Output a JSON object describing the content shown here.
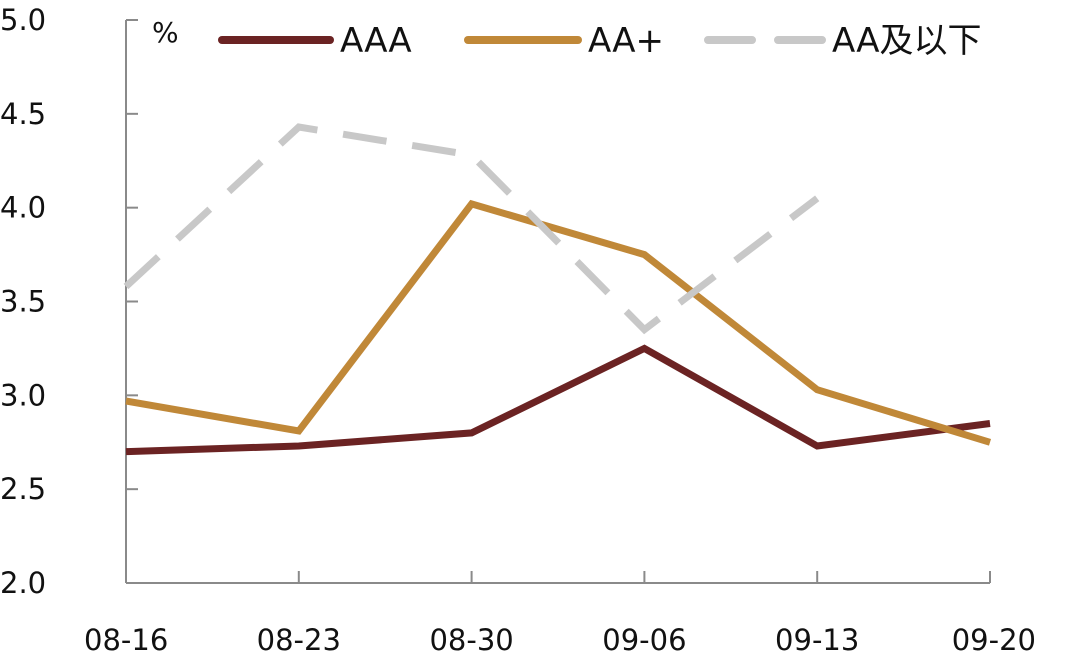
{
  "chart_data": {
    "type": "line",
    "ylabel": "%",
    "ylim": [
      2.0,
      5.0
    ],
    "yticks": [
      "5.0",
      "4.5",
      "4.0",
      "3.5",
      "3.0",
      "2.5",
      "2.0"
    ],
    "categories": [
      "08-16",
      "08-23",
      "08-30",
      "09-06",
      "09-13",
      "09-20"
    ],
    "grid": false,
    "legend_position": "top",
    "series": [
      {
        "name": "AAA",
        "color": "#6B2323",
        "dash": "solid",
        "values": [
          2.7,
          2.73,
          2.8,
          3.25,
          2.73,
          2.85
        ]
      },
      {
        "name": "AA+",
        "color": "#C08838",
        "dash": "solid",
        "values": [
          2.97,
          2.81,
          4.02,
          3.75,
          3.03,
          2.75
        ]
      },
      {
        "name": "AA及以下",
        "color": "#C8C8C8",
        "dash": "dashed",
        "values": [
          3.58,
          4.43,
          4.28,
          3.35,
          4.05,
          null
        ]
      }
    ]
  }
}
